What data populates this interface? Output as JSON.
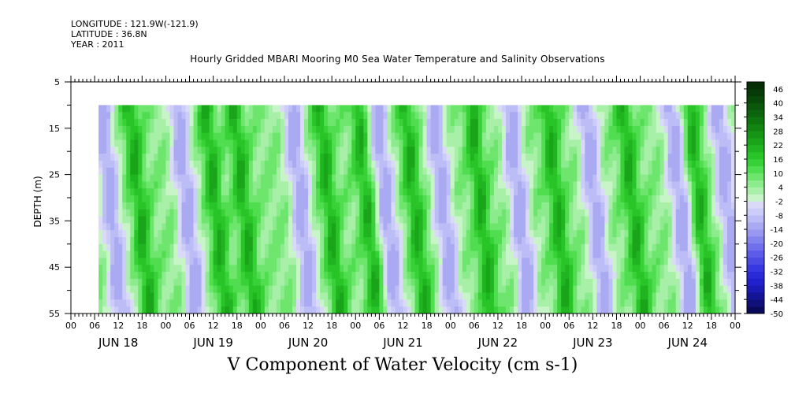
{
  "meta": {
    "longitude": "LONGITUDE : 121.9W(-121.9)",
    "latitude": "LATITUDE : 36.8N",
    "year": "YEAR : 2011"
  },
  "chart_data": {
    "type": "heatmap",
    "title": "Hourly Gridded MBARI Mooring M0 Sea Water Temperature and Salinity Observations",
    "xlabel": "V Component of Water Velocity (cm s-1)",
    "ylabel": "DEPTH (m)",
    "ylim": [
      55,
      5
    ],
    "y_ticks": [
      5,
      15,
      25,
      35,
      45,
      55
    ],
    "y_minor_step": 5,
    "data_depth_range": [
      10,
      55
    ],
    "x_start_hours_after_jun18": 7,
    "x_end_hours_after_jun18": 168,
    "x_hour_tick_labels": [
      "00",
      "06",
      "12",
      "18",
      "00",
      "06",
      "12",
      "18",
      "00",
      "06",
      "12",
      "18",
      "00",
      "06",
      "12",
      "18",
      "00",
      "06",
      "12",
      "18",
      "00",
      "06",
      "12",
      "18",
      "00",
      "06",
      "12",
      "18",
      "00"
    ],
    "x_day_labels": [
      "JUN 18",
      "JUN 19",
      "JUN 20",
      "JUN 21",
      "JUN 22",
      "JUN 23",
      "JUN 24"
    ],
    "colorbar": {
      "levels": [
        -50,
        -47,
        -44,
        -41,
        -38,
        -35,
        -32,
        -29,
        -26,
        -23,
        -20,
        -17,
        -14,
        -11,
        -8,
        -5,
        -2,
        1,
        4,
        7,
        10,
        13,
        16,
        19,
        22,
        25,
        28,
        31,
        34,
        37,
        40,
        43,
        46,
        49
      ],
      "tick_labels": [
        "-50",
        "-44",
        "-38",
        "-32",
        "-26",
        "-20",
        "-14",
        "-8",
        "-2",
        "4",
        "10",
        "16",
        "22",
        "28",
        "34",
        "40",
        "46"
      ],
      "tick_values": [
        -50,
        -44,
        -38,
        -32,
        -26,
        -20,
        -14,
        -8,
        -2,
        4,
        10,
        16,
        22,
        28,
        34,
        40,
        46
      ],
      "colors": [
        "#0a0a5a",
        "#10107a",
        "#141496",
        "#1a1ab4",
        "#2020cc",
        "#2a2ad8",
        "#3838e0",
        "#4a4ae4",
        "#5c5ce8",
        "#7070ec",
        "#8484ee",
        "#9898f0",
        "#aaaaf2",
        "#bcbcf6",
        "#ccccf8",
        "#dadaf8",
        "#c8f5c8",
        "#a8f0a8",
        "#8ceb8c",
        "#6ee66e",
        "#50de50",
        "#38d238",
        "#28c428",
        "#20b420",
        "#1aa41a",
        "#169416",
        "#128412",
        "#0e740e",
        "#0c640c",
        "#0a560a",
        "#084808",
        "#063a06",
        "#052e05"
      ]
    },
    "velocity_field_description_values": {
      "blue_bands_days": [
        0.3,
        1.1,
        2.3,
        3.2,
        3.8,
        4.6,
        5.4,
        6.3,
        6.8
      ],
      "green_bands_days": [
        0.6,
        1.4,
        1.7,
        2.6,
        3.0,
        3.5,
        4.2,
        5.0,
        5.8,
        6.5
      ],
      "value_min": -14,
      "value_max": 22
    }
  }
}
